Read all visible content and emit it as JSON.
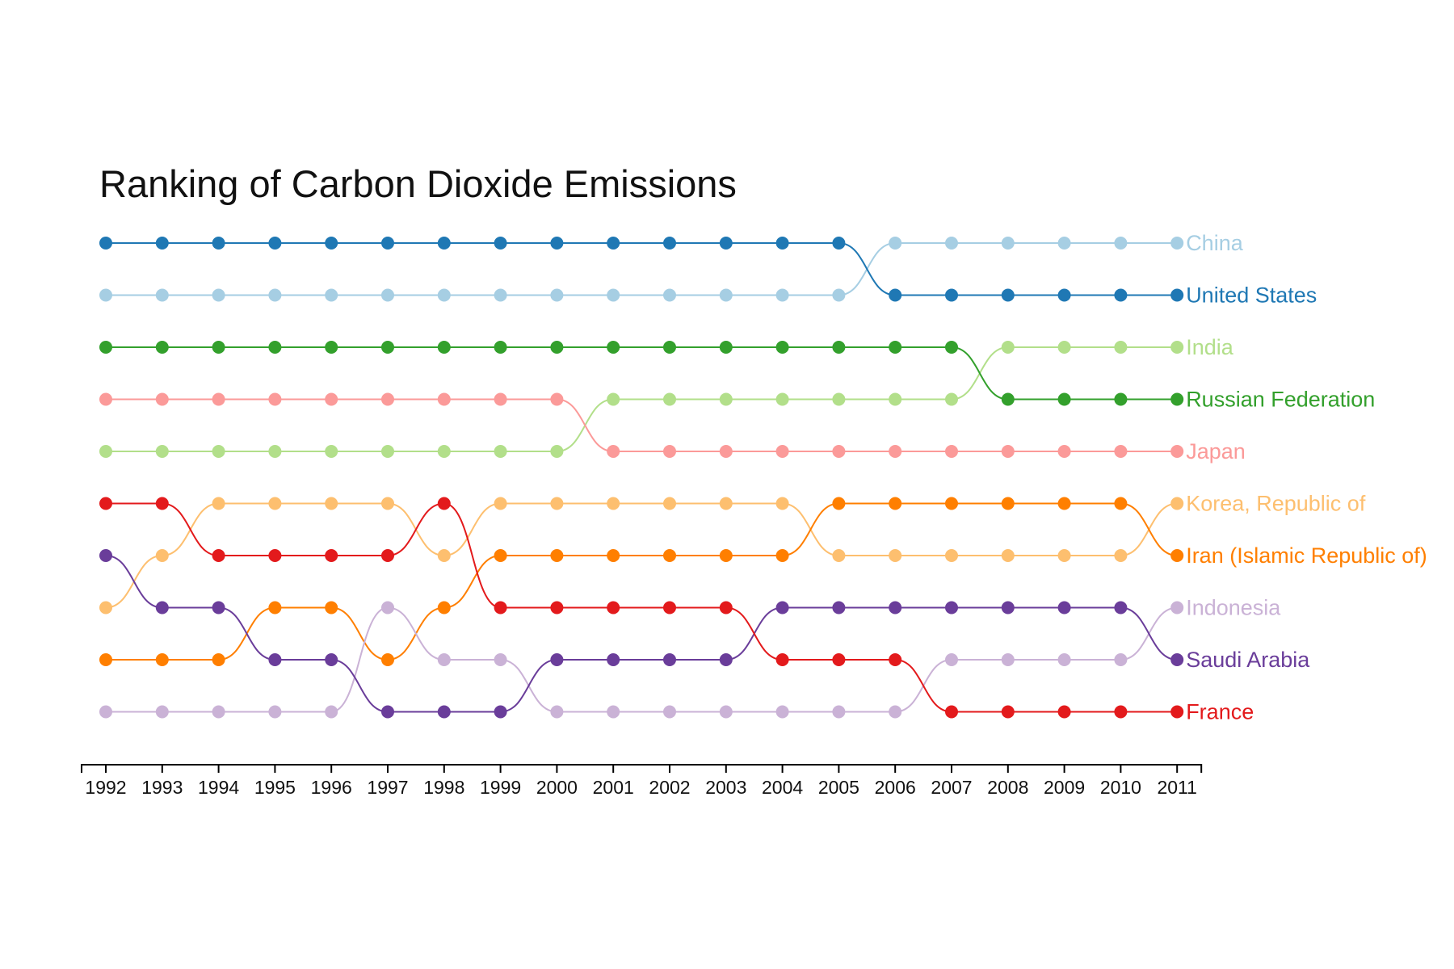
{
  "title": "Ranking of Carbon Dioxide Emissions",
  "chart_data": {
    "type": "line",
    "subtype": "bump",
    "title": "Ranking of Carbon Dioxide Emissions",
    "x": [
      "1992",
      "1993",
      "1994",
      "1995",
      "1996",
      "1997",
      "1998",
      "1999",
      "2000",
      "2001",
      "2002",
      "2003",
      "2004",
      "2005",
      "2006",
      "2007",
      "2008",
      "2009",
      "2010",
      "2011"
    ],
    "y_meaning": "rank (1 = highest emissions)",
    "ylim": [
      1,
      10
    ],
    "grid": false,
    "legend": "labels at right end of lines",
    "series": [
      {
        "name": "China",
        "color": "#a6cee3",
        "ranks": [
          2,
          2,
          2,
          2,
          2,
          2,
          2,
          2,
          2,
          2,
          2,
          2,
          2,
          2,
          1,
          1,
          1,
          1,
          1,
          1
        ]
      },
      {
        "name": "United States",
        "color": "#1f78b4",
        "ranks": [
          1,
          1,
          1,
          1,
          1,
          1,
          1,
          1,
          1,
          1,
          1,
          1,
          1,
          1,
          2,
          2,
          2,
          2,
          2,
          2
        ]
      },
      {
        "name": "India",
        "color": "#b2df8a",
        "ranks": [
          5,
          5,
          5,
          5,
          5,
          5,
          5,
          5,
          5,
          4,
          4,
          4,
          4,
          4,
          4,
          4,
          3,
          3,
          3,
          3
        ]
      },
      {
        "name": "Russian Federation",
        "color": "#33a02c",
        "ranks": [
          3,
          3,
          3,
          3,
          3,
          3,
          3,
          3,
          3,
          3,
          3,
          3,
          3,
          3,
          3,
          3,
          4,
          4,
          4,
          4
        ]
      },
      {
        "name": "Japan",
        "color": "#fb9a99",
        "ranks": [
          4,
          4,
          4,
          4,
          4,
          4,
          4,
          4,
          4,
          5,
          5,
          5,
          5,
          5,
          5,
          5,
          5,
          5,
          5,
          5
        ]
      },
      {
        "name": "Korea, Republic of",
        "color": "#fdbf6f",
        "ranks": [
          8,
          7,
          6,
          6,
          6,
          6,
          7,
          6,
          6,
          6,
          6,
          6,
          6,
          7,
          7,
          7,
          7,
          7,
          7,
          6
        ]
      },
      {
        "name": "Iran (Islamic Republic of)",
        "color": "#ff7f00",
        "ranks": [
          9,
          9,
          9,
          8,
          8,
          9,
          8,
          7,
          7,
          7,
          7,
          7,
          7,
          6,
          6,
          6,
          6,
          6,
          6,
          7
        ]
      },
      {
        "name": "Indonesia",
        "color": "#cab2d6",
        "ranks": [
          10,
          10,
          10,
          10,
          10,
          8,
          9,
          9,
          10,
          10,
          10,
          10,
          10,
          10,
          10,
          9,
          9,
          9,
          9,
          8
        ]
      },
      {
        "name": "Saudi Arabia",
        "color": "#6a3d9a",
        "ranks": [
          7,
          8,
          8,
          9,
          9,
          10,
          10,
          10,
          9,
          9,
          9,
          9,
          8,
          8,
          8,
          8,
          8,
          8,
          8,
          9
        ]
      },
      {
        "name": "France",
        "color": "#e31a1c",
        "ranks": [
          6,
          6,
          7,
          7,
          7,
          7,
          6,
          8,
          8,
          8,
          8,
          8,
          9,
          9,
          9,
          10,
          10,
          10,
          10,
          10
        ]
      }
    ]
  }
}
